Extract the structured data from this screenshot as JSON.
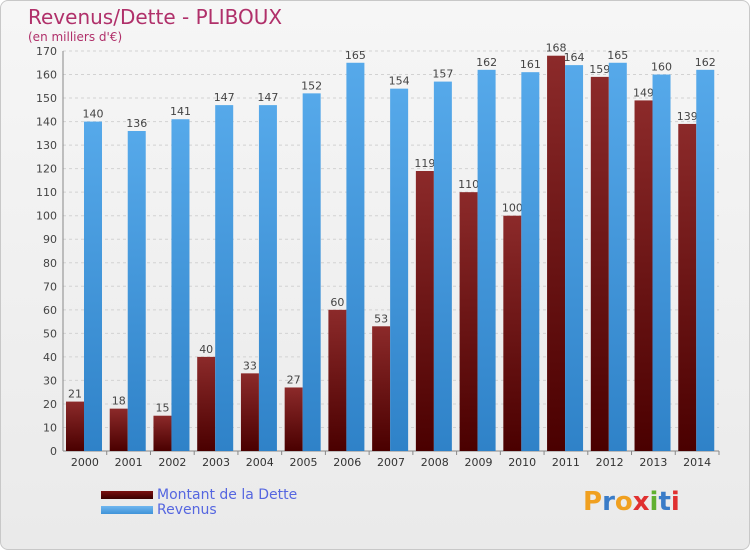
{
  "title": "Revenus/Dette - PLIBOUX",
  "subtitle": "(en milliers d'€)",
  "logo": {
    "letters": [
      "P",
      "r",
      "o",
      "x",
      "i",
      "t",
      "i"
    ],
    "colors": [
      "#f0a020",
      "#3a7cc8",
      "#f0a020",
      "#e03030",
      "#60b030",
      "#3a7cc8",
      "#e03030"
    ]
  },
  "colors": {
    "debt": "#7a1a1a",
    "revenus": "#4aa3e6",
    "title": "#b0306a",
    "legend_text": "#5566e0"
  },
  "chart_data": {
    "type": "bar",
    "title": "Revenus/Dette - PLIBOUX",
    "subtitle": "(en milliers d'€)",
    "categories": [
      "2000",
      "2001",
      "2002",
      "2003",
      "2004",
      "2005",
      "2006",
      "2007",
      "2008",
      "2009",
      "2010",
      "2011",
      "2012",
      "2013",
      "2014"
    ],
    "series": [
      {
        "name": "Montant de la Dette",
        "values": [
          21,
          18,
          15,
          40,
          33,
          27,
          60,
          53,
          119,
          110,
          100,
          168,
          159,
          149,
          139
        ]
      },
      {
        "name": "Revenus",
        "values": [
          140,
          136,
          141,
          147,
          147,
          152,
          165,
          154,
          157,
          162,
          161,
          164,
          165,
          160,
          162
        ]
      }
    ],
    "ylim": [
      0,
      170
    ],
    "yticks": [
      0,
      10,
      20,
      30,
      40,
      50,
      60,
      70,
      80,
      90,
      100,
      110,
      120,
      130,
      140,
      150,
      160,
      170
    ],
    "grid": true,
    "legend": "bottom-left"
  }
}
